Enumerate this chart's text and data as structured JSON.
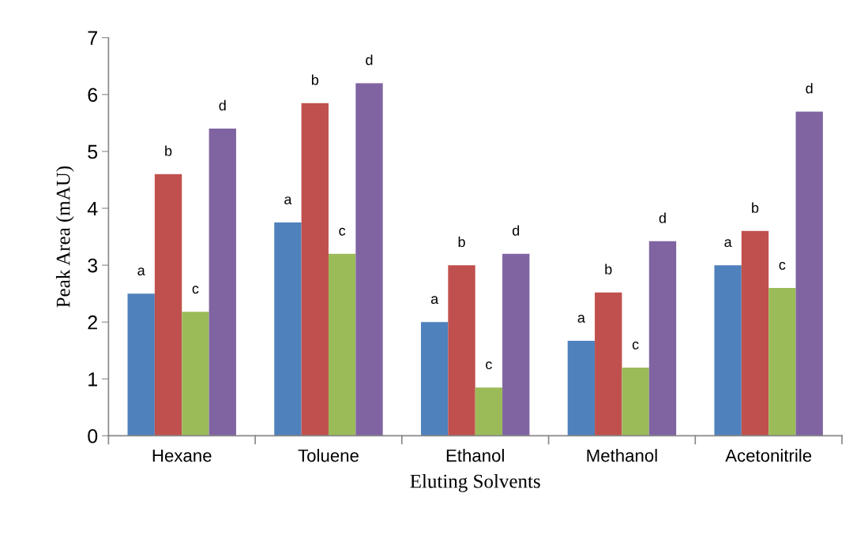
{
  "chart_data": {
    "type": "bar",
    "xlabel": "Eluting Solvents",
    "ylabel": "Peak Area (mAU)",
    "categories": [
      "Hexane",
      "Toluene",
      "Ethanol",
      "Methanol",
      "Acetonitrile"
    ],
    "series": [
      {
        "color": "#4f81bd",
        "values": [
          2.5,
          3.75,
          2.0,
          1.67,
          3.0
        ],
        "value_labels": [
          "a",
          "a",
          "a",
          "a",
          "a"
        ]
      },
      {
        "color": "#c0504d",
        "values": [
          4.6,
          5.85,
          3.0,
          2.52,
          3.6
        ],
        "value_labels": [
          "b",
          "b",
          "b",
          "b",
          "b"
        ]
      },
      {
        "color": "#9bbb59",
        "values": [
          2.18,
          3.2,
          0.85,
          1.2,
          2.6
        ],
        "value_labels": [
          "c",
          "c",
          "c",
          "c",
          "c"
        ]
      },
      {
        "color": "#8064a2",
        "values": [
          5.4,
          6.2,
          3.2,
          3.42,
          5.7
        ],
        "value_labels": [
          "d",
          "d",
          "d",
          "d",
          "d"
        ]
      }
    ],
    "ylim": [
      0,
      7
    ],
    "yticks": [
      0,
      1,
      2,
      3,
      4,
      5,
      6,
      7
    ],
    "grid": false,
    "legend": false
  }
}
